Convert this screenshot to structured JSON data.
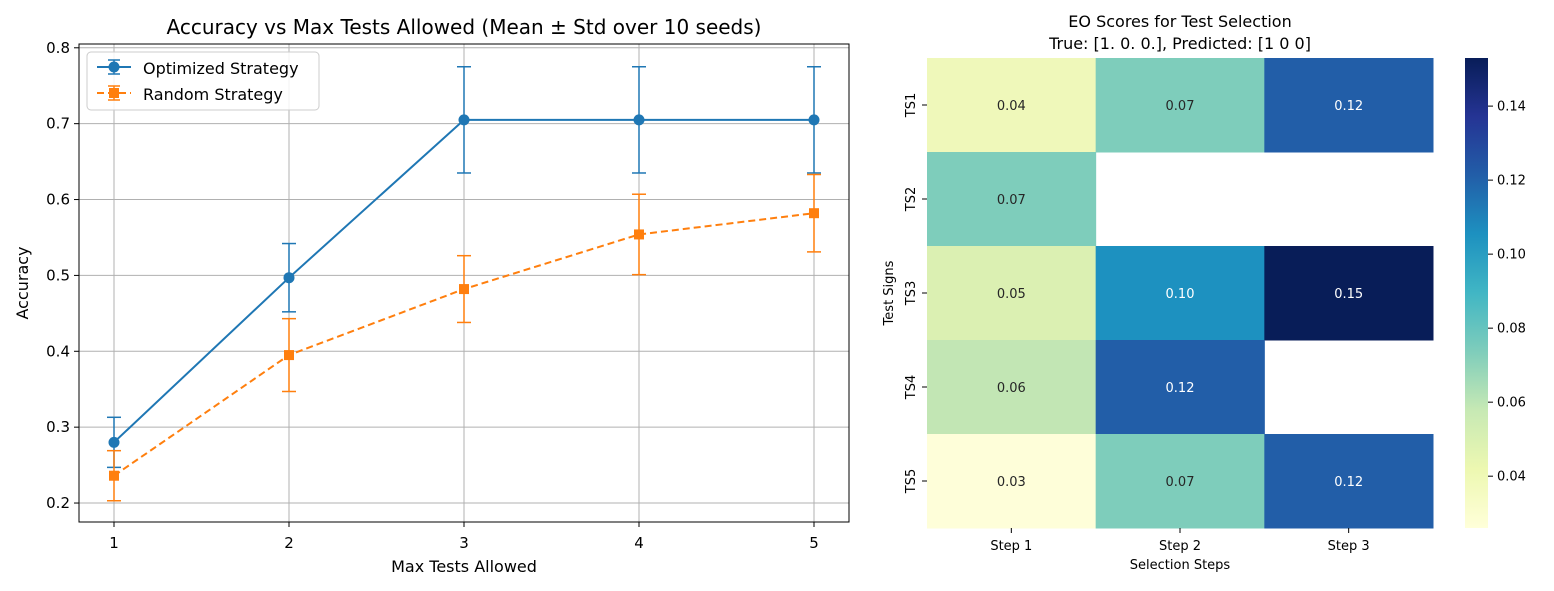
{
  "chart_data": [
    {
      "type": "line",
      "title": "Accuracy vs Max Tests Allowed (Mean ± Std over 10 seeds)",
      "xlabel": "Max Tests Allowed",
      "ylabel": "Accuracy",
      "x": [
        1,
        2,
        3,
        4,
        5
      ],
      "x_ticks": [
        "1",
        "2",
        "3",
        "4",
        "5"
      ],
      "xlim": [
        0.8,
        5.2
      ],
      "ylim": [
        0.175,
        0.805
      ],
      "y_ticks": [
        0.2,
        0.3,
        0.4,
        0.5,
        0.6,
        0.7,
        0.8
      ],
      "y_tick_labels": [
        "0.2",
        "0.3",
        "0.4",
        "0.5",
        "0.6",
        "0.7",
        "0.8"
      ],
      "grid": true,
      "legend_position": "upper-left",
      "series": [
        {
          "name": "Optimized Strategy",
          "color": "#1f77b4",
          "marker": "circle",
          "line_style": "solid",
          "values": [
            0.28,
            0.497,
            0.705,
            0.705,
            0.705
          ],
          "std": [
            0.033,
            0.045,
            0.07,
            0.07,
            0.07
          ]
        },
        {
          "name": "Random Strategy",
          "color": "#ff7f0e",
          "marker": "square",
          "line_style": "dashed",
          "values": [
            0.236,
            0.395,
            0.482,
            0.554,
            0.582
          ],
          "std": [
            0.033,
            0.048,
            0.044,
            0.053,
            0.051
          ]
        }
      ]
    },
    {
      "type": "heatmap",
      "title": "EO Scores for Test Selection",
      "subtitle": "True: [1. 0. 0.], Predicted: [1 0 0]",
      "xlabel": "Selection Steps",
      "ylabel": "Test Signs",
      "columns": [
        "Step 1",
        "Step 2",
        "Step 3"
      ],
      "rows": [
        "TS1",
        "TS2",
        "TS3",
        "TS4",
        "TS5"
      ],
      "values": [
        [
          0.04,
          0.07,
          0.12
        ],
        [
          0.07,
          null,
          null
        ],
        [
          0.05,
          0.1,
          0.15
        ],
        [
          0.06,
          0.12,
          null
        ],
        [
          0.03,
          0.07,
          0.12
        ]
      ],
      "cell_colors": [
        [
          "#eff8ba",
          "#7ecdbb",
          "#225ea8"
        ],
        [
          "#7ecdbb",
          null,
          null
        ],
        [
          "#dbf0b2",
          "#1d91c0",
          "#081d58"
        ],
        [
          "#c2e6b4",
          "#225ea8",
          null
        ],
        [
          "#fefed9",
          "#7ecdbb",
          "#225ea8"
        ]
      ],
      "dark_text_cells": [
        [
          true,
          true,
          false
        ],
        [
          true
        ],
        [
          true,
          false,
          false
        ],
        [
          true,
          false
        ],
        [
          true,
          true,
          false
        ]
      ],
      "colormap": "YlGnBu",
      "colorbar_range": [
        0.026,
        0.153
      ],
      "colorbar_ticks": [
        0.04,
        0.06,
        0.08,
        0.1,
        0.12,
        0.14
      ],
      "colorbar_tick_labels": [
        "0.04",
        "0.06",
        "0.08",
        "0.10",
        "0.12",
        "0.14"
      ],
      "colormap_stops": [
        "#ffffd9",
        "#edf8b1",
        "#c7e9b4",
        "#7fcdbb",
        "#41b6c4",
        "#1d91c0",
        "#225ea8",
        "#253494",
        "#081d58"
      ]
    }
  ]
}
